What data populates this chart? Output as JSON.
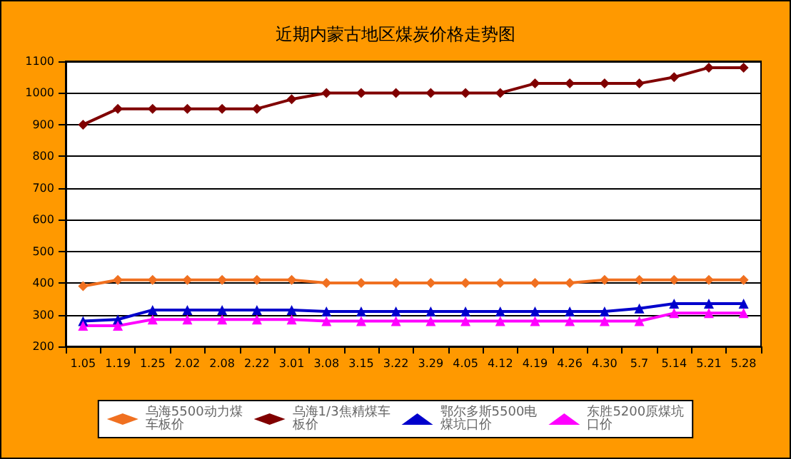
{
  "chart_data": {
    "type": "line",
    "title": "近期内蒙古地区煤炭价格走势图",
    "categories": [
      "1.05",
      "1.19",
      "1.25",
      "2.02",
      "2.08",
      "2.22",
      "3.01",
      "3.08",
      "3.15",
      "3.22",
      "3.29",
      "4.05",
      "4.12",
      "4.19",
      "4.26",
      "4.30",
      "5.7",
      "5.14",
      "5.21",
      "5.28"
    ],
    "series": [
      {
        "name": "乌海5500动力煤车板价",
        "color": "#f07020",
        "marker": "diamond",
        "values": [
          390,
          410,
          410,
          410,
          410,
          410,
          410,
          400,
          400,
          400,
          400,
          400,
          400,
          400,
          400,
          410,
          410,
          410,
          410,
          410
        ]
      },
      {
        "name": "乌海1/3焦精煤车板价",
        "color": "#800000",
        "marker": "diamond",
        "values": [
          900,
          950,
          950,
          950,
          950,
          950,
          980,
          1000,
          1000,
          1000,
          1000,
          1000,
          1000,
          1030,
          1030,
          1030,
          1030,
          1050,
          1080,
          1080
        ]
      },
      {
        "name": "鄂尔多斯5500电煤坑口价",
        "color": "#0000cc",
        "marker": "triangle",
        "values": [
          280,
          285,
          315,
          315,
          315,
          315,
          315,
          310,
          310,
          310,
          310,
          310,
          310,
          310,
          310,
          310,
          320,
          335,
          335,
          335
        ]
      },
      {
        "name": "东胜5200原煤坑口价",
        "color": "#ff00ff",
        "marker": "triangle",
        "values": [
          265,
          265,
          285,
          285,
          285,
          285,
          285,
          280,
          280,
          280,
          280,
          280,
          280,
          280,
          280,
          280,
          280,
          305,
          305,
          305
        ]
      }
    ],
    "ylim": [
      200,
      1100
    ],
    "yticks": [
      200,
      300,
      400,
      500,
      600,
      700,
      800,
      900,
      1000,
      1100
    ],
    "grid": "y",
    "legend": "bottom",
    "line_style": "solid"
  }
}
